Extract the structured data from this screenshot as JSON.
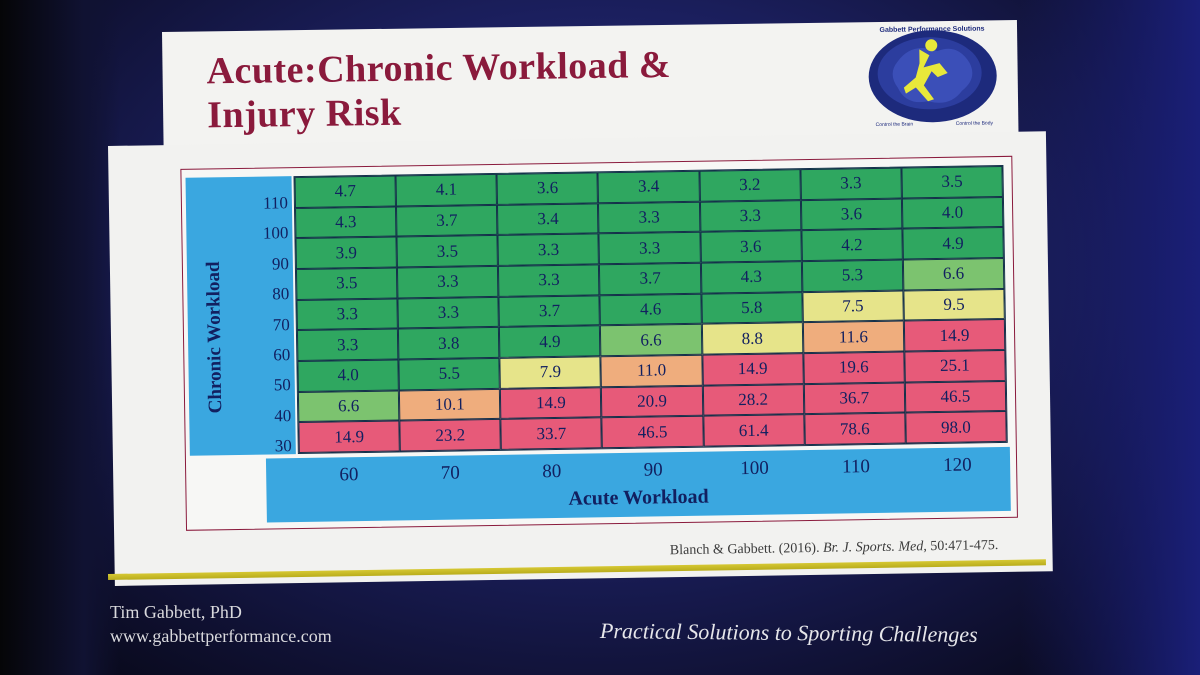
{
  "slide": {
    "title_line1": "Acute:Chronic Workload &",
    "title_line2": "Injury Risk",
    "logo_text": "Gabbett Performance Solutions",
    "logo_left_caption": "Control the Brain",
    "logo_right_caption": "Control the Body"
  },
  "table": {
    "y_axis_title": "Chronic Workload",
    "x_axis_title": "Acute Workload",
    "chronic_levels": [
      "110",
      "100",
      "90",
      "80",
      "70",
      "60",
      "50",
      "40",
      "30"
    ],
    "acute_levels": [
      "60",
      "70",
      "80",
      "90",
      "100",
      "110",
      "120"
    ],
    "rows": [
      [
        "4.7",
        "4.1",
        "3.6",
        "3.4",
        "3.2",
        "3.3",
        "3.5"
      ],
      [
        "4.3",
        "3.7",
        "3.4",
        "3.3",
        "3.3",
        "3.6",
        "4.0"
      ],
      [
        "3.9",
        "3.5",
        "3.3",
        "3.3",
        "3.6",
        "4.2",
        "4.9"
      ],
      [
        "3.5",
        "3.3",
        "3.3",
        "3.7",
        "4.3",
        "5.3",
        "6.6"
      ],
      [
        "3.3",
        "3.3",
        "3.7",
        "4.6",
        "5.8",
        "7.5",
        "9.5"
      ],
      [
        "3.3",
        "3.8",
        "4.9",
        "6.6",
        "8.8",
        "11.6",
        "14.9"
      ],
      [
        "4.0",
        "5.5",
        "7.9",
        "11.0",
        "14.9",
        "19.6",
        "25.1"
      ],
      [
        "6.6",
        "10.1",
        "14.9",
        "20.9",
        "28.2",
        "36.7",
        "46.5"
      ],
      [
        "14.9",
        "23.2",
        "33.7",
        "46.5",
        "61.4",
        "78.6",
        "98.0"
      ]
    ],
    "colors": {
      "green": "#2fa760",
      "light_green": "#7cc36f",
      "yellow": "#e6e48a",
      "orange": "#efad7d",
      "red": "#e75a79",
      "axis_blue": "#3aa7e0"
    }
  },
  "citation": {
    "authors": "Blanch & Gabbett. (2016).",
    "journal": "Br. J. Sports. Med,",
    "pages": "50:471-475."
  },
  "footer": {
    "name": "Tim Gabbett, PhD",
    "website": "www.gabbettperformance.com",
    "tagline": "Practical Solutions to Sporting Challenges"
  }
}
